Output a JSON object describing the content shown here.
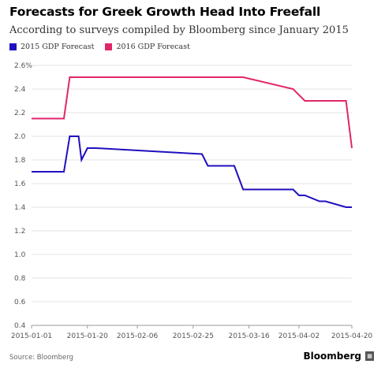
{
  "chart_data": {
    "type": "line",
    "title": "Forecasts for Greek Growth Head Into Freefall",
    "subtitle": "According to surveys compiled by Bloomberg since January 2015",
    "xlabel": "",
    "ylabel": "",
    "x_ticks": [
      "2015-01-01",
      "2015-01-20",
      "2015-02-06",
      "2015-02-25",
      "2015-03-16",
      "2015-04-02",
      "2015-04-20"
    ],
    "y_ticks": [
      "0.4",
      "0.6",
      "0.8",
      "1.0",
      "1.2",
      "1.4",
      "1.6",
      "1.8",
      "2.0",
      "2.2",
      "2.4",
      "2.6%"
    ],
    "xlim": [
      "2015-01-01",
      "2015-04-20"
    ],
    "ylim": [
      0.4,
      2.6
    ],
    "grid": true,
    "legend_position": "top-left",
    "series": [
      {
        "name": "2015 GDP Forecast",
        "color": "#1f0fbf",
        "x": [
          "2015-01-01",
          "2015-01-12",
          "2015-01-14",
          "2015-01-17",
          "2015-01-18",
          "2015-01-20",
          "2015-01-23",
          "2015-02-28",
          "2015-03-02",
          "2015-03-11",
          "2015-03-14",
          "2015-03-31",
          "2015-04-02",
          "2015-04-04",
          "2015-04-09",
          "2015-04-11",
          "2015-04-18",
          "2015-04-20"
        ],
        "values": [
          1.7,
          1.7,
          2.0,
          2.0,
          1.8,
          1.9,
          1.9,
          1.85,
          1.75,
          1.75,
          1.55,
          1.55,
          1.5,
          1.5,
          1.45,
          1.45,
          1.4,
          1.4
        ]
      },
      {
        "name": "2016 GDP Forecast",
        "color": "#e0266a",
        "x": [
          "2015-01-01",
          "2015-01-12",
          "2015-01-14",
          "2015-03-14",
          "2015-03-31",
          "2015-04-04",
          "2015-04-18",
          "2015-04-20"
        ],
        "values": [
          2.15,
          2.15,
          2.5,
          2.5,
          2.4,
          2.3,
          2.3,
          1.9
        ]
      }
    ]
  },
  "header": {
    "title": "Forecasts for Greek Growth Head Into Freefall",
    "subtitle": "According to surveys compiled by Bloomberg since January 2015"
  },
  "legend": {
    "items": [
      {
        "label": "2015 GDP Forecast",
        "color": "#1f0fbf"
      },
      {
        "label": "2016 GDP Forecast",
        "color": "#e0266a"
      }
    ]
  },
  "footer": {
    "source": "Source: Bloomberg",
    "brand": "Bloomberg",
    "brand_icon": "bloomberg-logo-icon"
  }
}
